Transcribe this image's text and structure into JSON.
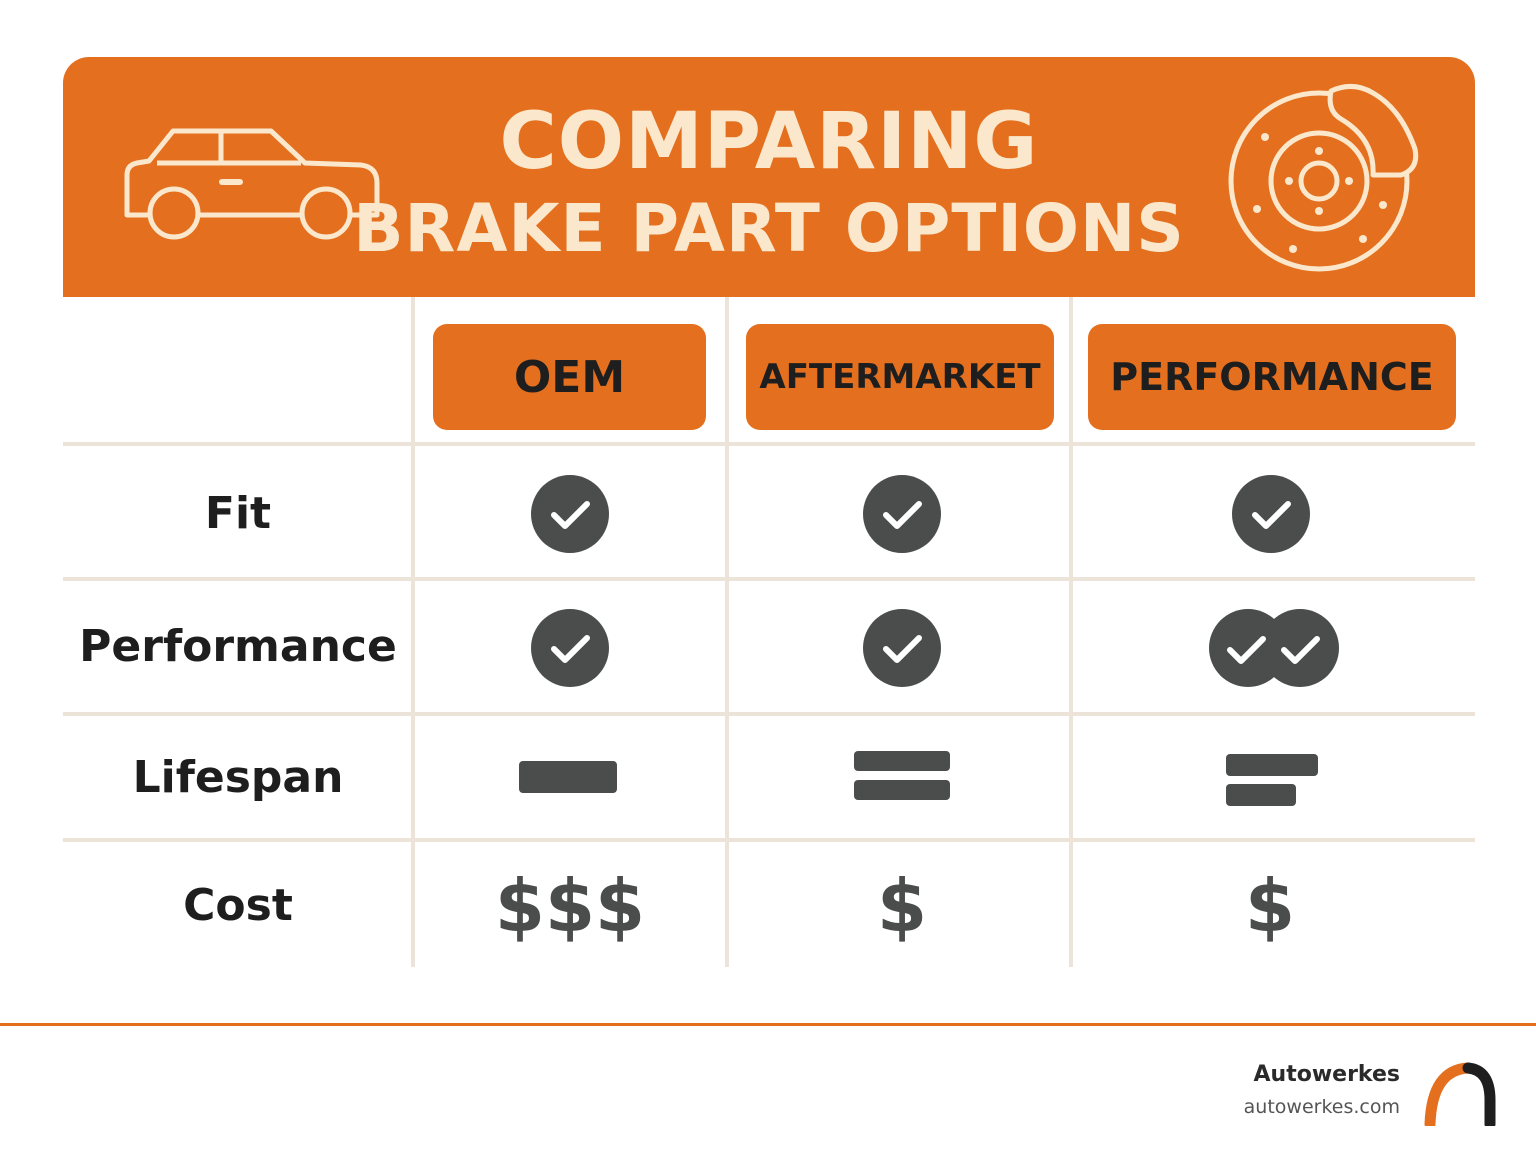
{
  "banner": {
    "title_line1": "COMPARING",
    "title_line2": "BRAKE PART OPTIONS",
    "left_icon": "car-icon",
    "right_icon": "brake-disc-icon"
  },
  "columns": [
    "OEM",
    "AFTERMARKET",
    "PERFORMANCE"
  ],
  "rows": [
    {
      "label": "Fit",
      "values": [
        "check",
        "check",
        "check"
      ]
    },
    {
      "label": "Performance",
      "values": [
        "check",
        "check",
        "double-check"
      ]
    },
    {
      "label": "Lifespan",
      "values": [
        "one-bar",
        "two-bars",
        "two-bars-short"
      ]
    },
    {
      "label": "Cost",
      "values": [
        "$$$",
        "$",
        "$"
      ]
    }
  ],
  "footer": {
    "brand": "Autowerkes",
    "url": "autowerkes.com",
    "logo_icon": "autowerkes-logo-icon"
  },
  "colors": {
    "accent": "#e4701f",
    "banner_text": "#fbe8cc",
    "icon_dark": "#4a4d4b",
    "grid": "#ece4d8"
  }
}
